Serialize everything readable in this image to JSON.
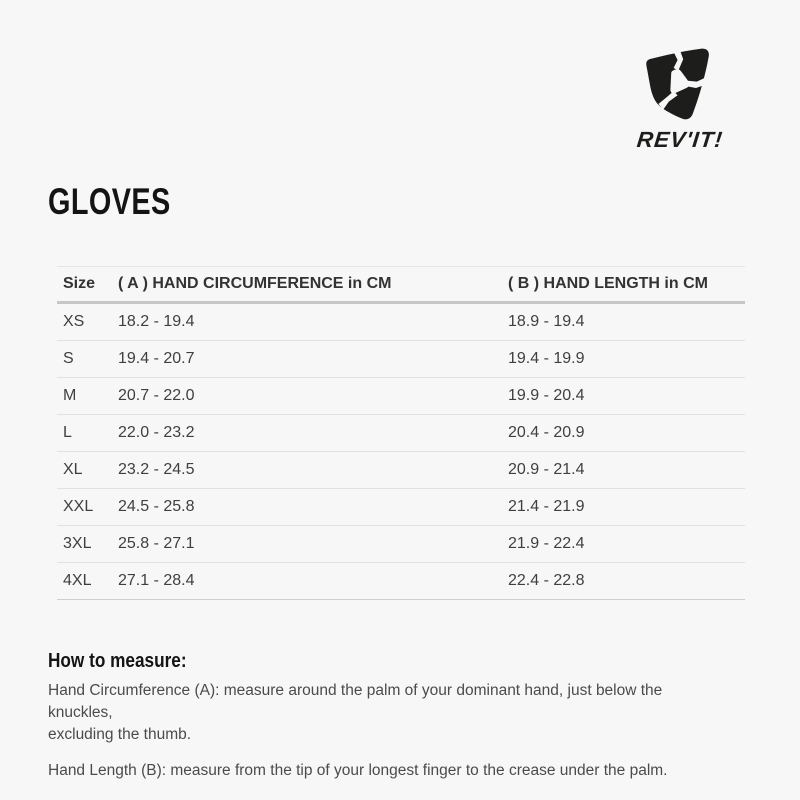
{
  "page": {
    "background_color": "#f7f7f7"
  },
  "logo": {
    "brand": "REV'IT!",
    "emblem_icon": "revit-pick-emblem",
    "color": "#1d1d1b"
  },
  "title": "GLOVES",
  "table": {
    "columns": [
      "Size",
      "( A ) HAND CIRCUMFERENCE in CM",
      "( B ) HAND LENGTH in CM"
    ],
    "rows": [
      {
        "size": "XS",
        "hand_circumference_cm": "18.2 - 19.4",
        "hand_length_cm": "18.9 - 19.4"
      },
      {
        "size": "S",
        "hand_circumference_cm": "19.4 - 20.7",
        "hand_length_cm": "19.4 - 19.9"
      },
      {
        "size": "M",
        "hand_circumference_cm": "20.7 - 22.0",
        "hand_length_cm": "19.9 - 20.4"
      },
      {
        "size": "L",
        "hand_circumference_cm": "22.0 - 23.2",
        "hand_length_cm": "20.4 - 20.9"
      },
      {
        "size": "XL",
        "hand_circumference_cm": "23.2 - 24.5",
        "hand_length_cm": "20.9 - 21.4"
      },
      {
        "size": "XXL",
        "hand_circumference_cm": "24.5 - 25.8",
        "hand_length_cm": "21.4 - 21.9"
      },
      {
        "size": "3XL",
        "hand_circumference_cm": "25.8 - 27.1",
        "hand_length_cm": "21.9 - 22.4"
      },
      {
        "size": "4XL",
        "hand_circumference_cm": "27.1 - 28.4",
        "hand_length_cm": "22.4 - 22.8"
      }
    ]
  },
  "how_to_measure": {
    "heading": "How to measure:",
    "paragraphs": [
      "Hand Circumference (A): measure around the palm of your dominant hand, just below the knuckles,\nexcluding the thumb.",
      "Hand Length (B): measure from the tip of your longest finger to the crease under the palm."
    ]
  },
  "colors": {
    "background": "#f7f7f7",
    "brand_black": "#1d1d1b",
    "title_text": "#141414",
    "table_header_text": "#333333",
    "table_cell_text": "#3f3f3f",
    "body_text": "#4b4b4b",
    "table_top_border": "#e4e4e4",
    "table_header_border": "#c6c6c6",
    "row_divider": "#e1e1e1"
  }
}
